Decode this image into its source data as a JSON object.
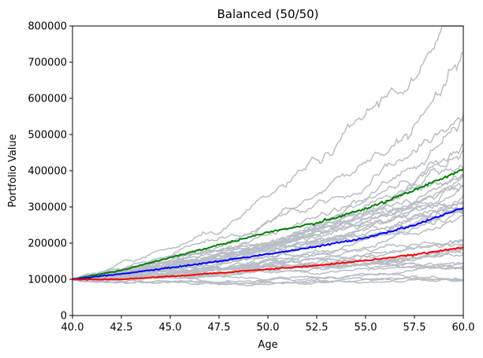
{
  "chart_data": {
    "type": "line",
    "title": "Balanced (50/50)",
    "xlabel": "Age",
    "ylabel": "Portfolio Value",
    "xlim": [
      40,
      60
    ],
    "ylim": [
      0,
      800000
    ],
    "xticks": [
      "40.0",
      "42.5",
      "45.0",
      "47.5",
      "50.0",
      "52.5",
      "55.0",
      "57.5",
      "60.0"
    ],
    "yticks": [
      "0",
      "100000",
      "200000",
      "300000",
      "400000",
      "500000",
      "600000",
      "700000",
      "800000"
    ],
    "grid": false,
    "legend": "none",
    "background_series": {
      "color": "#b8bec6",
      "count": 40,
      "start_value": 100000,
      "final_values_range": [
        90000,
        550000
      ],
      "description_note": ""
    },
    "series": [
      {
        "color": "#008000",
        "x": [
          40,
          42.5,
          45,
          47.5,
          50,
          52.5,
          55,
          57.5,
          60
        ],
        "values": [
          100000,
          125000,
          160000,
          195000,
          230000,
          255000,
          295000,
          345000,
          405000
        ]
      },
      {
        "color": "#0000ff",
        "x": [
          40,
          42.5,
          45,
          47.5,
          50,
          52.5,
          55,
          57.5,
          60
        ],
        "values": [
          100000,
          115000,
          132000,
          150000,
          170000,
          190000,
          215000,
          250000,
          297000
        ]
      },
      {
        "color": "#ff0000",
        "x": [
          40,
          42.5,
          45,
          47.5,
          50,
          52.5,
          55,
          57.5,
          60
        ],
        "values": [
          100000,
          100000,
          108000,
          118000,
          128000,
          138000,
          152000,
          168000,
          188000
        ]
      }
    ]
  }
}
